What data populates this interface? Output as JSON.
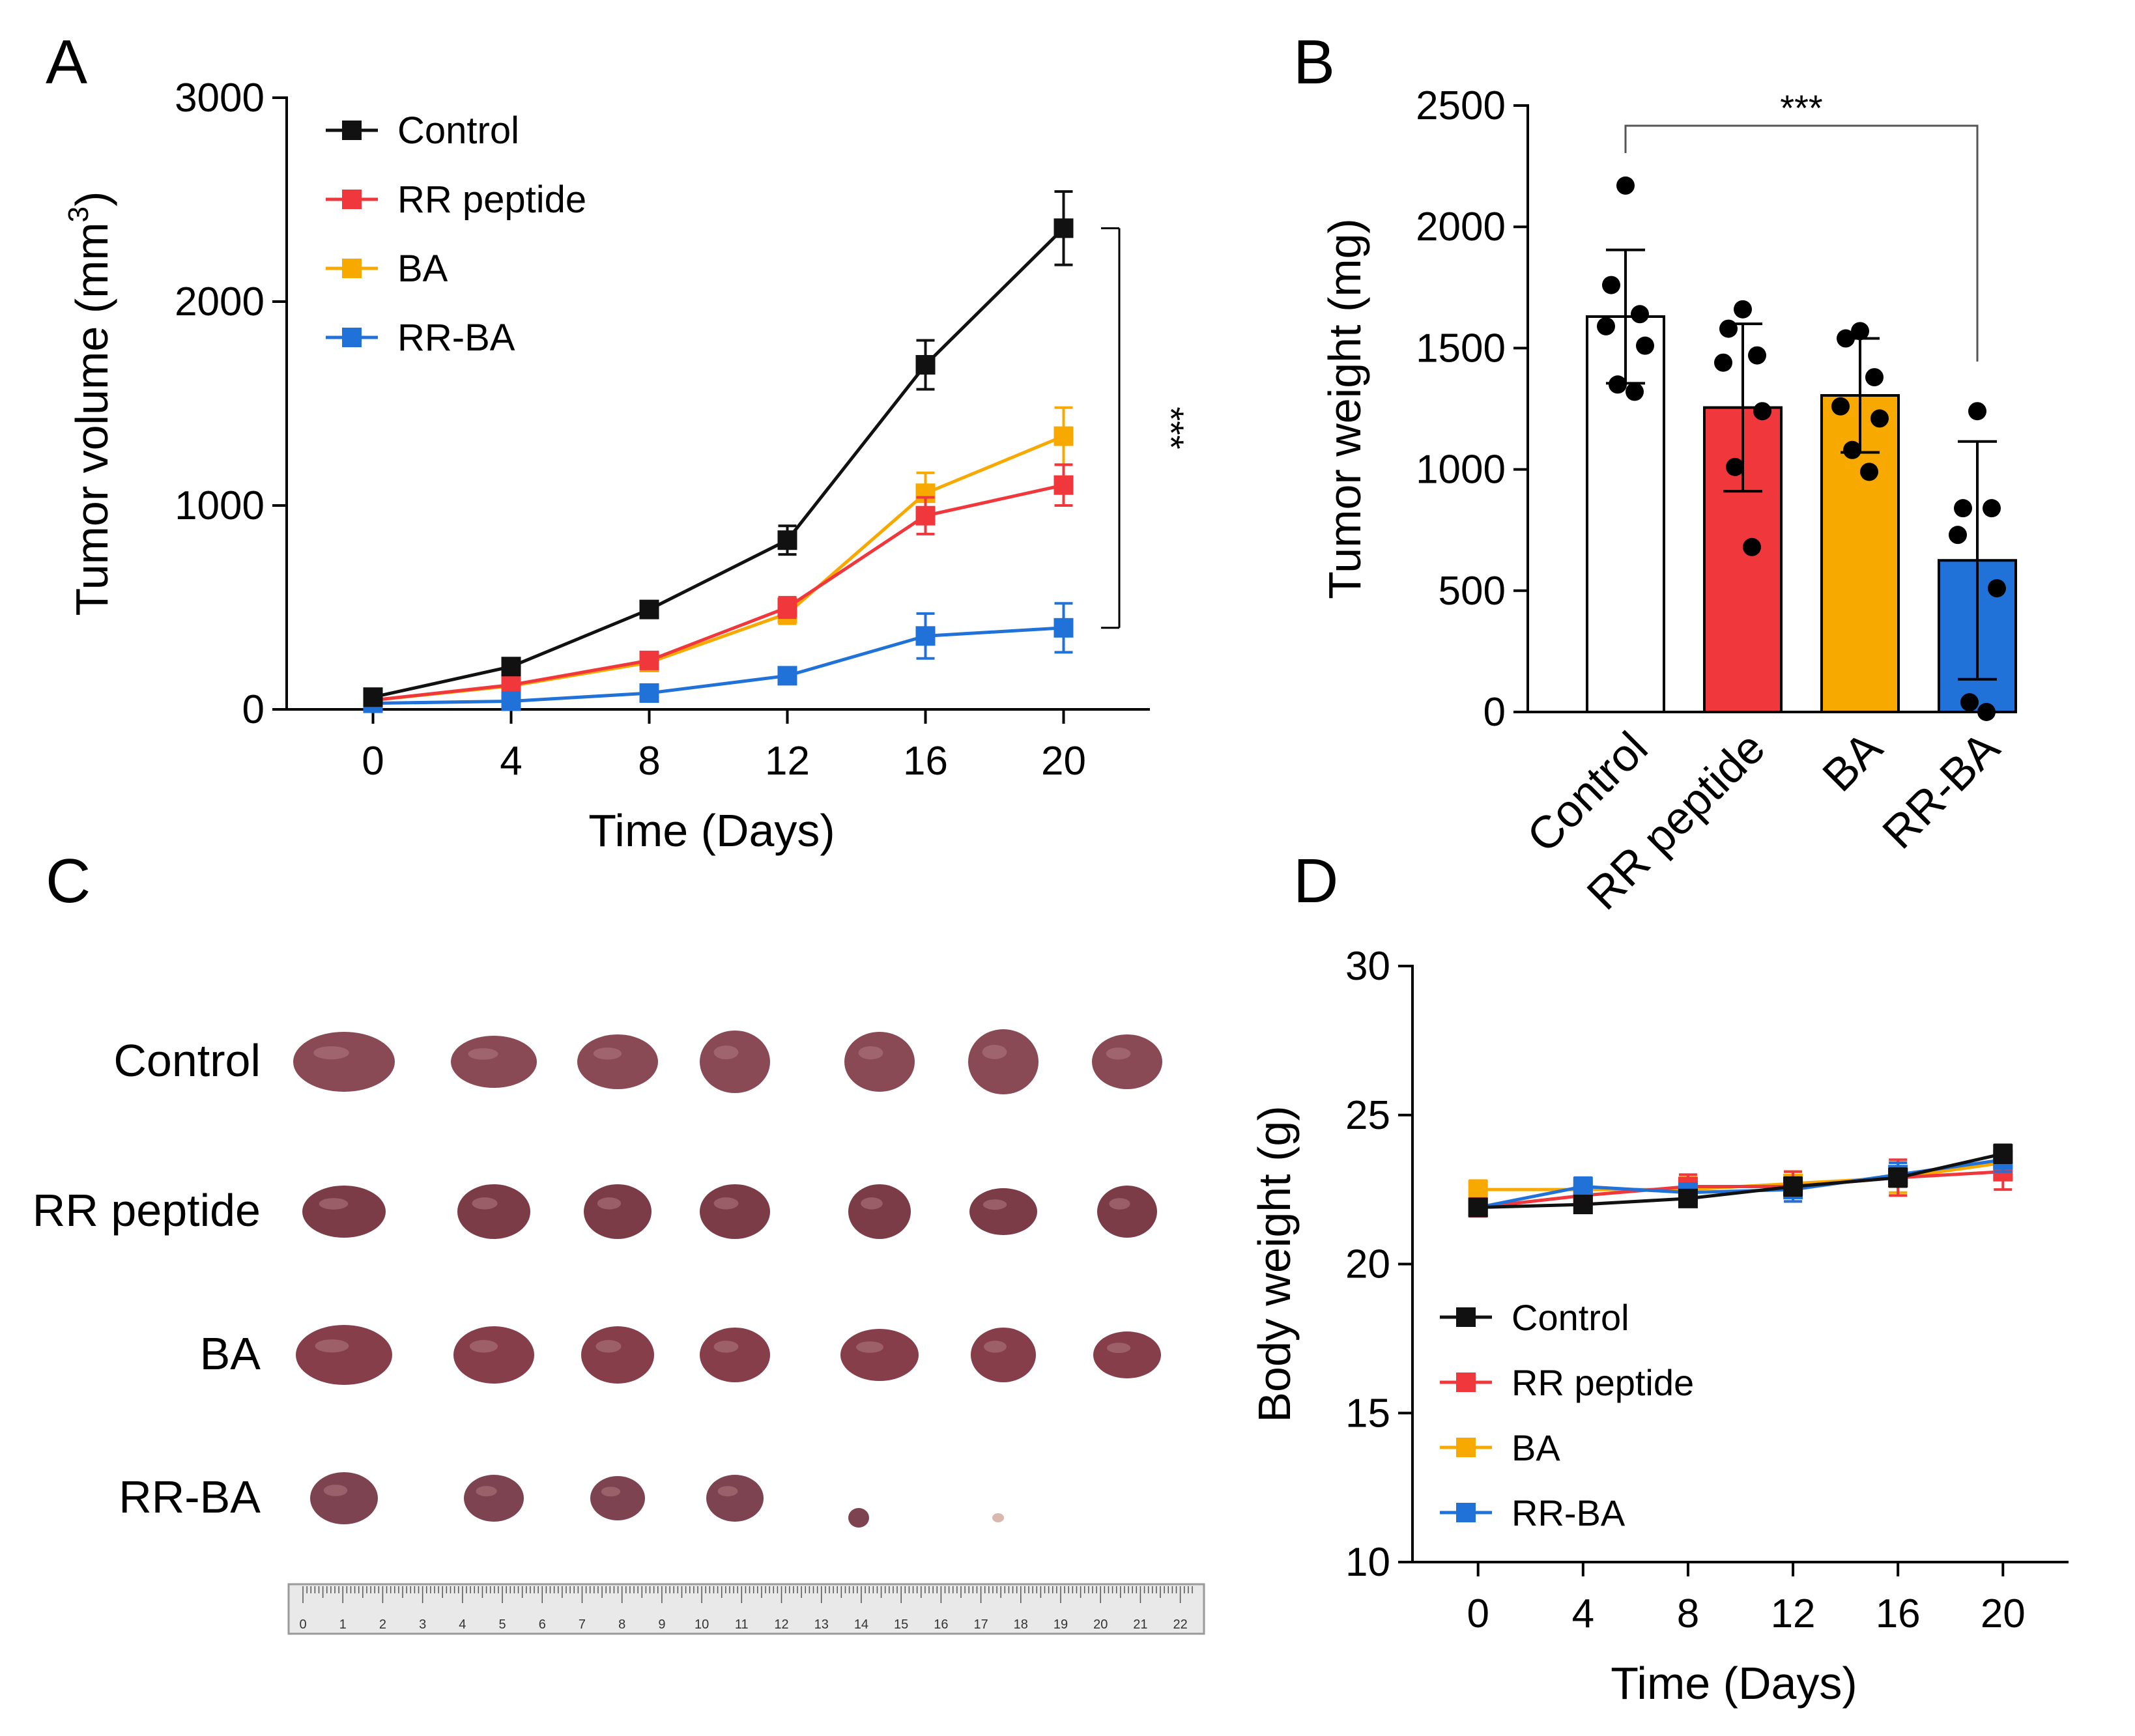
{
  "panels": {
    "a": "A",
    "b": "B",
    "c": "C",
    "d": "D"
  },
  "colors": {
    "control": "#111111",
    "rr_peptide": "#f0383c",
    "ba": "#f7a900",
    "rr_ba": "#2172d8",
    "control_bar": "#ffffff"
  },
  "chart_data": [
    {
      "id": "A",
      "type": "line",
      "xlabel": "Time (Days)",
      "ylabel": "Tumor volume (mm",
      "ylabel_sup": "3",
      "ylabel_end": ")",
      "x": [
        0,
        4,
        8,
        12,
        16,
        20
      ],
      "xlim": [
        -2.5,
        22.5
      ],
      "ylim": [
        0,
        3000
      ],
      "yticks": [
        0,
        1000,
        2000,
        3000
      ],
      "xticks": [
        0,
        4,
        8,
        12,
        16,
        20
      ],
      "series": [
        {
          "name": "Control",
          "color_key": "control",
          "values": [
            60,
            210,
            490,
            830,
            1690,
            2360
          ],
          "errors": [
            15,
            25,
            40,
            70,
            120,
            180
          ]
        },
        {
          "name": "RR peptide",
          "color_key": "rr_peptide",
          "values": [
            45,
            120,
            240,
            500,
            950,
            1100
          ],
          "errors": [
            10,
            20,
            30,
            50,
            90,
            100
          ]
        },
        {
          "name": "BA",
          "color_key": "ba",
          "values": [
            45,
            115,
            230,
            470,
            1060,
            1340
          ],
          "errors": [
            10,
            20,
            30,
            50,
            100,
            140
          ]
        },
        {
          "name": "RR-BA",
          "color_key": "rr_ba",
          "values": [
            30,
            40,
            80,
            165,
            360,
            400
          ],
          "errors": [
            8,
            12,
            20,
            30,
            110,
            120
          ]
        }
      ],
      "annotation": "***",
      "legend_position": "top-left"
    },
    {
      "id": "B",
      "type": "bar",
      "ylabel": "Tumor weight (mg)",
      "categories": [
        "Control",
        "RR peptide",
        "BA",
        "RR-BA"
      ],
      "values": [
        1630,
        1255,
        1305,
        625
      ],
      "errors": [
        275,
        345,
        235,
        490
      ],
      "points": [
        [
          2170,
          1760,
          1640,
          1590,
          1510,
          1350,
          1320
        ],
        [
          1660,
          1580,
          1470,
          1440,
          1240,
          1010,
          680
        ],
        [
          1570,
          1540,
          1380,
          1260,
          1210,
          1080,
          990
        ],
        [
          1240,
          840,
          840,
          730,
          510,
          40,
          0
        ]
      ],
      "ylim": [
        0,
        2500
      ],
      "yticks": [
        0,
        500,
        1000,
        1500,
        2000,
        2500
      ],
      "annotation": "***"
    },
    {
      "id": "C",
      "type": "table",
      "rows": [
        "Control",
        "RR peptide",
        "BA",
        "RR-BA"
      ],
      "tumor_counts": [
        7,
        7,
        7,
        6
      ],
      "ruler_ticks": [
        "0",
        "1",
        "2",
        "3",
        "4",
        "5",
        "6",
        "7",
        "8",
        "9",
        "10",
        "11",
        "12",
        "13",
        "14",
        "15",
        "16",
        "17",
        "18",
        "19",
        "20",
        "21",
        "22"
      ]
    },
    {
      "id": "D",
      "type": "line",
      "xlabel": "Time (Days)",
      "ylabel": "Body weight (g)",
      "x": [
        0,
        4,
        8,
        12,
        16,
        20
      ],
      "xlim": [
        -2.5,
        22.5
      ],
      "ylim": [
        10,
        30
      ],
      "yticks": [
        10,
        15,
        20,
        25,
        30
      ],
      "xticks": [
        0,
        4,
        8,
        12,
        16,
        20
      ],
      "series": [
        {
          "name": "Control",
          "color_key": "control",
          "values": [
            21.9,
            22.0,
            22.2,
            22.6,
            22.9,
            23.7
          ],
          "errors": [
            0.2,
            0.2,
            0.2,
            0.3,
            0.3,
            0.3
          ]
        },
        {
          "name": "RR peptide",
          "color_key": "rr_peptide",
          "values": [
            21.9,
            22.3,
            22.6,
            22.6,
            22.9,
            23.1
          ],
          "errors": [
            0.3,
            0.3,
            0.4,
            0.5,
            0.6,
            0.6
          ]
        },
        {
          "name": "BA",
          "color_key": "ba",
          "values": [
            22.5,
            22.5,
            22.5,
            22.7,
            22.9,
            23.4
          ],
          "errors": [
            0.3,
            0.3,
            0.4,
            0.4,
            0.5,
            0.5
          ]
        },
        {
          "name": "RR-BA",
          "color_key": "rr_ba",
          "values": [
            21.9,
            22.6,
            22.4,
            22.5,
            23.0,
            23.5
          ],
          "errors": [
            0.2,
            0.3,
            0.3,
            0.4,
            0.4,
            0.4
          ]
        }
      ],
      "legend_position": "bottom-left"
    }
  ]
}
